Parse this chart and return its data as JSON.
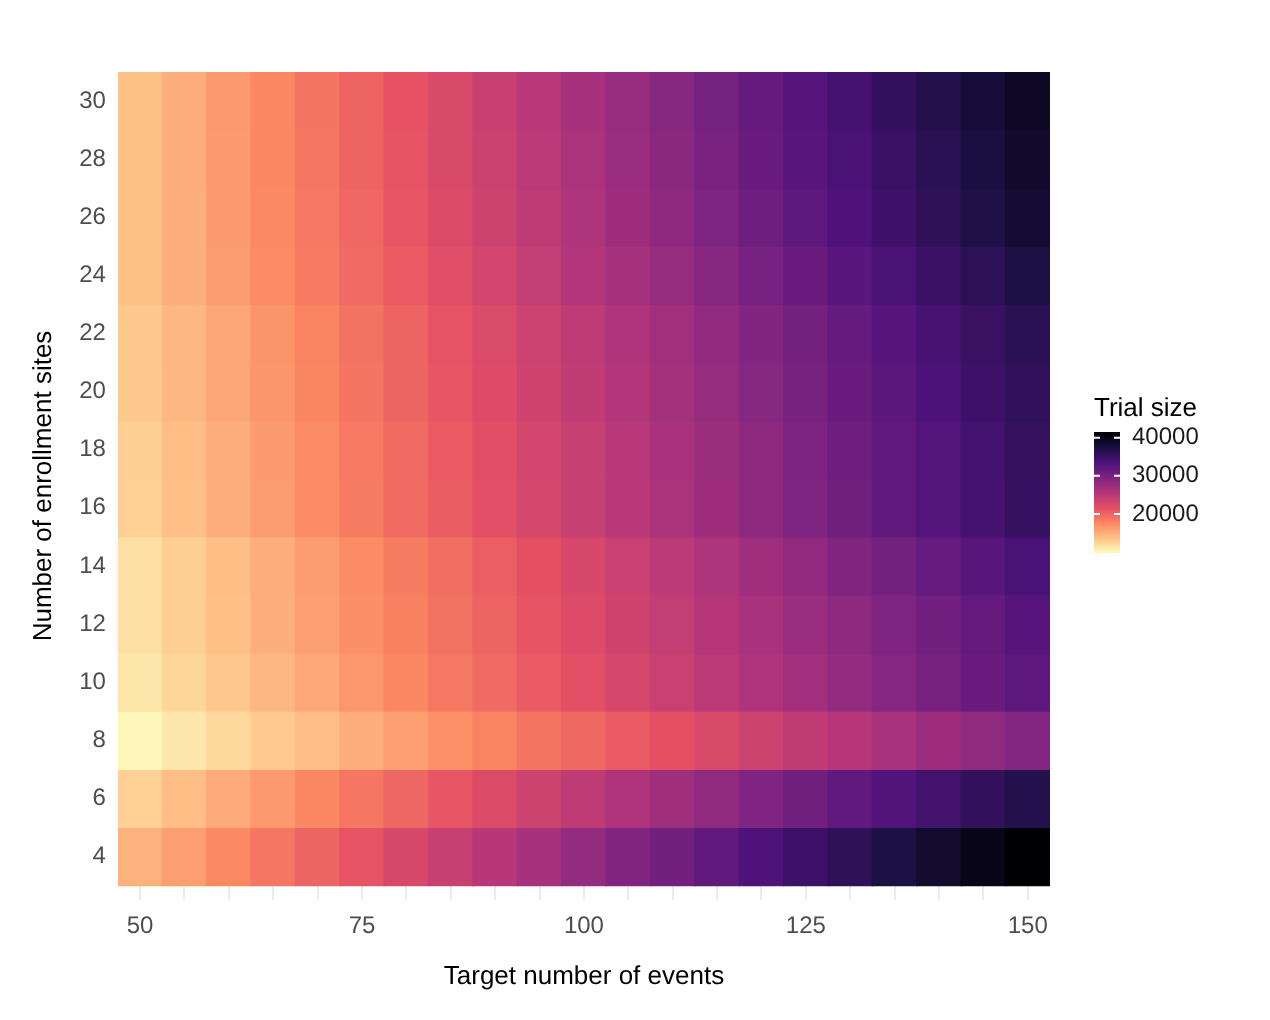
{
  "chart_data": {
    "type": "heatmap",
    "xlabel": "Target number of events",
    "ylabel": "Number of enrollment sites",
    "clabel": "Trial size",
    "grid": true,
    "categories": [
      "50",
      null,
      null,
      null,
      null,
      "75",
      null,
      null,
      null,
      null,
      "100",
      null,
      null,
      null,
      null,
      "125",
      null,
      null,
      null,
      null,
      "150"
    ],
    "y_categories": [
      "30",
      "28",
      "26",
      "24",
      "22",
      "20",
      "18",
      "16",
      "14",
      "12",
      "10",
      "8",
      "6",
      "4"
    ],
    "cells": [
      [
        14000,
        15300,
        16600,
        17800,
        19100,
        20400,
        21700,
        22900,
        24200,
        25500,
        26800,
        28000,
        29300,
        30600,
        31900,
        33100,
        34400,
        35700,
        37000,
        38200,
        39500
      ],
      [
        14000,
        15300,
        16500,
        17800,
        19000,
        20300,
        21500,
        22800,
        24000,
        25300,
        26500,
        27800,
        29000,
        30300,
        31500,
        32800,
        34000,
        35300,
        36500,
        37800,
        39000
      ],
      [
        14000,
        15200,
        16500,
        17700,
        18900,
        20100,
        21400,
        22600,
        23800,
        25000,
        26300,
        27500,
        28700,
        29900,
        31200,
        32400,
        33600,
        34800,
        36100,
        37300,
        38500
      ],
      [
        14000,
        15200,
        16400,
        17500,
        18700,
        19900,
        21100,
        22200,
        23400,
        24600,
        25800,
        26900,
        28100,
        29300,
        30500,
        31600,
        32800,
        34000,
        35200,
        36300,
        37500
      ],
      [
        13500,
        14700,
        15800,
        17000,
        18100,
        19300,
        20400,
        21600,
        22700,
        23900,
        25000,
        26200,
        27300,
        28500,
        29600,
        30800,
        31900,
        33100,
        34200,
        35400,
        36500
      ],
      [
        13500,
        14600,
        15800,
        16900,
        18000,
        19100,
        20300,
        21400,
        22500,
        23600,
        24800,
        25900,
        27000,
        28100,
        29300,
        30400,
        31500,
        32600,
        33800,
        34900,
        36000
      ],
      [
        13100,
        14200,
        15300,
        16500,
        17600,
        18700,
        19800,
        21000,
        22100,
        23200,
        24300,
        25500,
        26600,
        27700,
        28800,
        30000,
        31100,
        32200,
        33300,
        34500,
        35600
      ],
      [
        13000,
        14100,
        15300,
        16400,
        17500,
        18600,
        19800,
        20900,
        22000,
        23100,
        24300,
        25400,
        26500,
        27600,
        28800,
        29900,
        31000,
        32100,
        33300,
        34400,
        35500
      ],
      [
        12000,
        13100,
        14200,
        15300,
        16400,
        17500,
        18600,
        19700,
        20800,
        21900,
        23000,
        24100,
        25200,
        26300,
        27400,
        28500,
        29600,
        30700,
        31800,
        32900,
        34000
      ],
      [
        12000,
        13100,
        14100,
        15200,
        16200,
        17300,
        18300,
        19400,
        20400,
        21500,
        22500,
        23600,
        24600,
        25700,
        26700,
        27800,
        28800,
        29900,
        30900,
        32000,
        33000
      ],
      [
        11500,
        12600,
        13600,
        14700,
        15700,
        16800,
        17800,
        18900,
        19900,
        21000,
        22000,
        23100,
        24100,
        25200,
        26200,
        27300,
        28300,
        29400,
        30400,
        31500,
        32500
      ],
      [
        10500,
        11500,
        12400,
        13400,
        14300,
        15300,
        16200,
        17200,
        18100,
        19100,
        20000,
        21000,
        21900,
        22900,
        23800,
        24800,
        25700,
        26700,
        27600,
        28600,
        29500
      ],
      [
        13000,
        14200,
        15400,
        16600,
        17800,
        19000,
        20200,
        21400,
        22600,
        23800,
        25000,
        26200,
        27400,
        28600,
        29800,
        31000,
        32200,
        33400,
        34600,
        35800,
        37000
      ],
      [
        15000,
        16300,
        17700,
        19000,
        20300,
        21600,
        23000,
        24300,
        25600,
        26900,
        28300,
        29600,
        30900,
        32200,
        33600,
        34900,
        36200,
        37500,
        38900,
        40200,
        41500
      ]
    ],
    "clim": [
      10000,
      41500
    ],
    "cticks": [
      20000,
      30000,
      40000
    ]
  }
}
